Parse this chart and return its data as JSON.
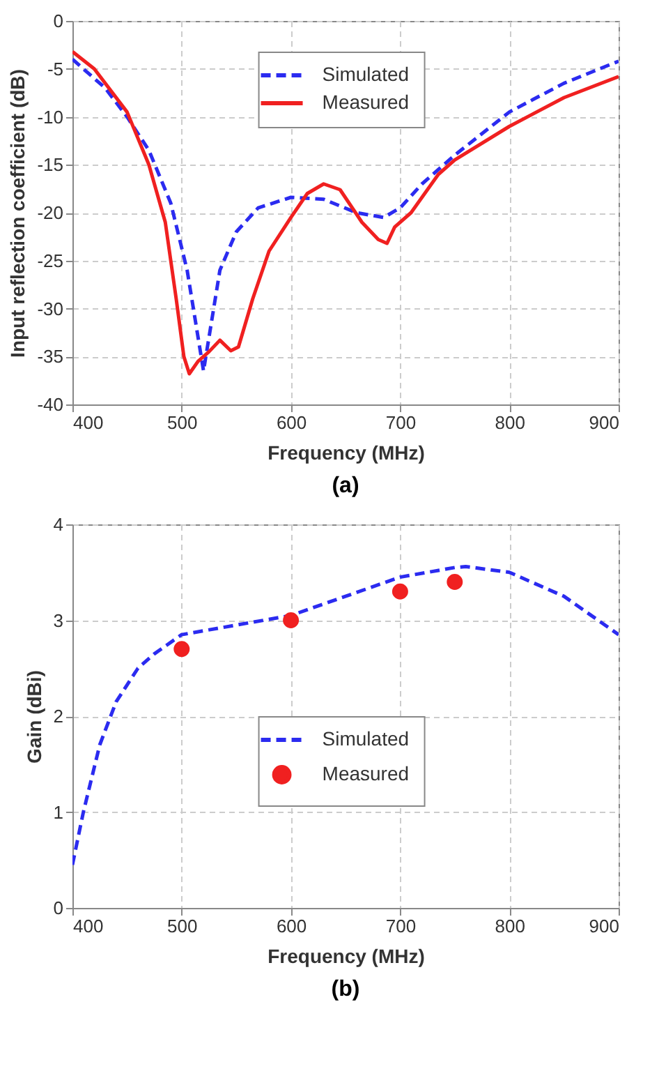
{
  "chart_data": [
    {
      "type": "line",
      "title": "(a)",
      "xlabel": "Frequency (MHz)",
      "ylabel": "Input reflection coefficient (dB)",
      "xlim": [
        400,
        900
      ],
      "xticks": [
        400,
        500,
        600,
        700,
        800,
        900
      ],
      "ylim": [
        -40,
        0
      ],
      "yticks": [
        -40,
        -35,
        -30,
        -25,
        -20,
        -15,
        -10,
        -5,
        0
      ],
      "grid": true,
      "legend": "top",
      "series": [
        {
          "name": "Simulated",
          "color": "#2b2bf0",
          "line_style": "dashed",
          "x": [
            400,
            430,
            450,
            470,
            490,
            505,
            515,
            520,
            525,
            535,
            550,
            570,
            600,
            630,
            660,
            685,
            700,
            720,
            750,
            800,
            850,
            900
          ],
          "values": [
            -4,
            -7,
            -10,
            -13.5,
            -19,
            -26,
            -33,
            -36.5,
            -33,
            -26,
            -22,
            -19.5,
            -18.4,
            -18.6,
            -20,
            -20.5,
            -19.5,
            -17,
            -14,
            -9.5,
            -6.5,
            -4.2
          ]
        },
        {
          "name": "Measured",
          "color": "#f02020",
          "line_style": "solid",
          "x": [
            400,
            420,
            450,
            470,
            485,
            495,
            502,
            507,
            515,
            525,
            535,
            545,
            552,
            565,
            580,
            600,
            615,
            630,
            645,
            665,
            680,
            688,
            695,
            710,
            735,
            750,
            800,
            850,
            900
          ],
          "values": [
            -3.2,
            -5,
            -9.5,
            -15,
            -21,
            -29,
            -35,
            -36.8,
            -35.5,
            -34.5,
            -33.3,
            -34.4,
            -34,
            -29,
            -24,
            -20.5,
            -18,
            -17,
            -17.6,
            -21,
            -22.8,
            -23.2,
            -21.5,
            -20,
            -16,
            -14.5,
            -11,
            -8,
            -5.8
          ]
        }
      ]
    },
    {
      "type": "line",
      "title": "(b)",
      "xlabel": "Frequency (MHz)",
      "ylabel": "Gain (dBi)",
      "xlim": [
        400,
        900
      ],
      "xticks": [
        400,
        500,
        600,
        700,
        800,
        900
      ],
      "ylim": [
        0,
        4
      ],
      "yticks": [
        0,
        1,
        2,
        3,
        4
      ],
      "grid": true,
      "legend": "center",
      "series": [
        {
          "name": "Simulated",
          "color": "#2b2bf0",
          "line_style": "dashed",
          "x": [
            400,
            410,
            425,
            440,
            460,
            475,
            500,
            550,
            600,
            650,
            700,
            750,
            760,
            800,
            850,
            900
          ],
          "values": [
            0.45,
            1,
            1.7,
            2.15,
            2.5,
            2.65,
            2.85,
            2.95,
            3.05,
            3.25,
            3.45,
            3.55,
            3.56,
            3.5,
            3.25,
            2.85
          ]
        },
        {
          "name": "Measured",
          "type": "scatter",
          "marker": "circle",
          "color": "#f02020",
          "x": [
            500,
            600,
            700,
            750
          ],
          "values": [
            2.7,
            3.0,
            3.3,
            3.4
          ]
        }
      ]
    }
  ]
}
